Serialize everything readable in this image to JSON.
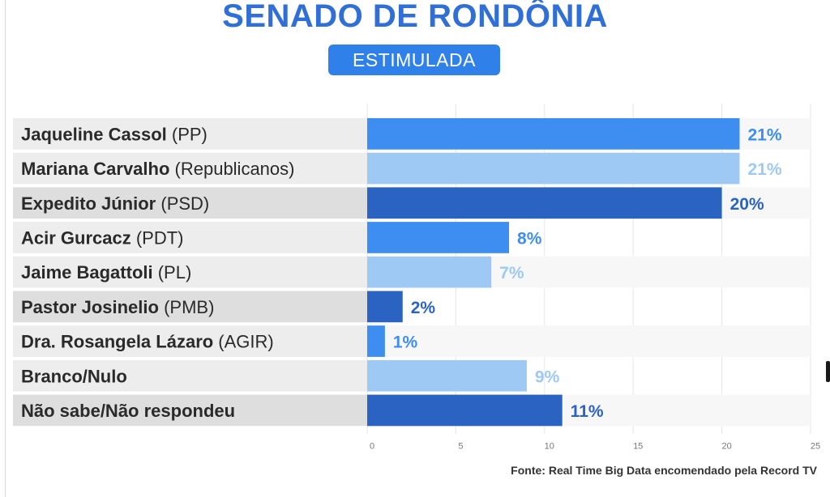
{
  "header": {
    "title": "SENADO DE RONDÔNIA",
    "subtitle": "ESTIMULADA"
  },
  "source": "Fonte: Real Time Big Data encomendado pela Record TV",
  "colors": {
    "title": "#2f6fd6",
    "pill": "#2f80e8",
    "bar_medium": "#3d8ef0",
    "bar_light": "#9ec9f5",
    "bar_dark": "#2b63c2",
    "label_bg_light": "#ededed",
    "label_bg_dark": "#dedede"
  },
  "chart_data": {
    "type": "bar",
    "orientation": "horizontal",
    "categories": [
      {
        "name": "Jaqueline Cassol",
        "party": "(PP)"
      },
      {
        "name": "Mariana Carvalho",
        "party": "(Republicanos)"
      },
      {
        "name": "Expedito Júnior",
        "party": "(PSD)"
      },
      {
        "name": "Acir Gurcacz",
        "party": "(PDT)"
      },
      {
        "name": "Jaime Bagattoli",
        "party": "(PL)"
      },
      {
        "name": "Pastor Josinelio",
        "party": "(PMB)"
      },
      {
        "name": "Dra. Rosangela Lázaro",
        "party": "(AGIR)"
      },
      {
        "name": "Branco/Nulo",
        "party": ""
      },
      {
        "name": "Não sabe/Não respondeu",
        "party": ""
      }
    ],
    "values": [
      21,
      21,
      20,
      8,
      7,
      2,
      1,
      9,
      11
    ],
    "value_labels": [
      "21%",
      "21%",
      "20%",
      "8%",
      "7%",
      "2%",
      "1%",
      "9%",
      "11%"
    ],
    "bar_tones": [
      "medium",
      "light",
      "dark",
      "medium",
      "light",
      "dark",
      "medium",
      "light",
      "dark"
    ],
    "xlim": [
      0,
      25
    ],
    "xticks": [
      "0",
      "5",
      "10",
      "15",
      "20",
      "25"
    ],
    "grid": "vertical",
    "legend": "none"
  }
}
